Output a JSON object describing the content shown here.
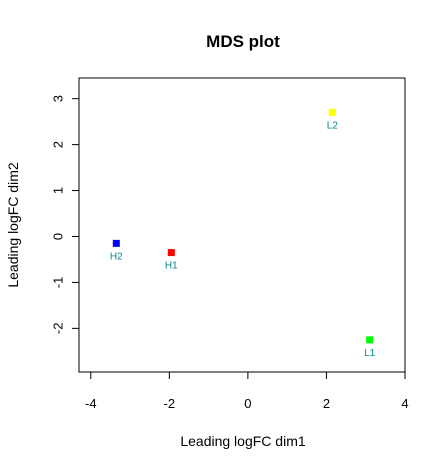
{
  "chart_data": {
    "type": "scatter",
    "title": "MDS plot",
    "xlabel": "Leading logFC dim1",
    "ylabel": "Leading logFC dim2",
    "xlim": [
      -4.3,
      4.0
    ],
    "ylim": [
      -2.95,
      3.45
    ],
    "xticks": [
      -4,
      -2,
      0,
      2,
      4
    ],
    "yticks": [
      -2,
      -1,
      0,
      1,
      2,
      3
    ],
    "grid": false,
    "points": [
      {
        "label": "H2",
        "x": -3.35,
        "y": -0.15,
        "color": "#0000ff"
      },
      {
        "label": "H1",
        "x": -1.95,
        "y": -0.35,
        "color": "#ff0000"
      },
      {
        "label": "L2",
        "x": 2.15,
        "y": 2.7,
        "color": "#ffff00"
      },
      {
        "label": "L1",
        "x": 3.1,
        "y": -2.25,
        "color": "#00ff00"
      }
    ],
    "label_color": "#008b8b"
  }
}
